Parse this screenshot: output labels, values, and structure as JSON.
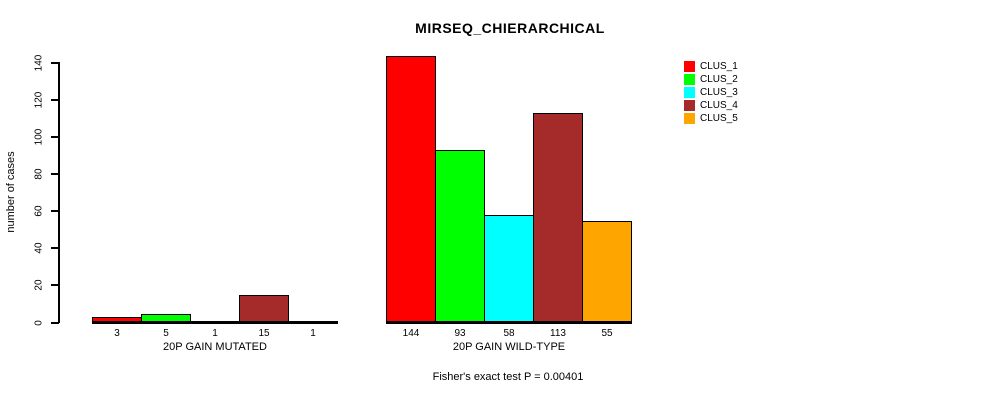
{
  "chart_data": {
    "type": "bar",
    "title": "MIRSEQ_CHIERARCHICAL",
    "ylabel": "number of cases",
    "xlabel": "",
    "ylim": [
      0,
      140
    ],
    "y_ticks": [
      0,
      20,
      40,
      60,
      80,
      100,
      120,
      140
    ],
    "grid": false,
    "legend_position": "top-right",
    "series": [
      {
        "name": "CLUS_1",
        "color": "#FF0000"
      },
      {
        "name": "CLUS_2",
        "color": "#00FF00"
      },
      {
        "name": "CLUS_3",
        "color": "#00FFFF"
      },
      {
        "name": "CLUS_4",
        "color": "#A52A2A"
      },
      {
        "name": "CLUS_5",
        "color": "#FFA500"
      }
    ],
    "groups": [
      {
        "label": "20P GAIN MUTATED",
        "values": [
          3,
          5,
          1,
          15,
          1
        ]
      },
      {
        "label": "20P GAIN WILD-TYPE",
        "values": [
          144,
          93,
          58,
          113,
          55
        ]
      }
    ],
    "annotation": "Fisher's exact test P = 0.00401"
  }
}
